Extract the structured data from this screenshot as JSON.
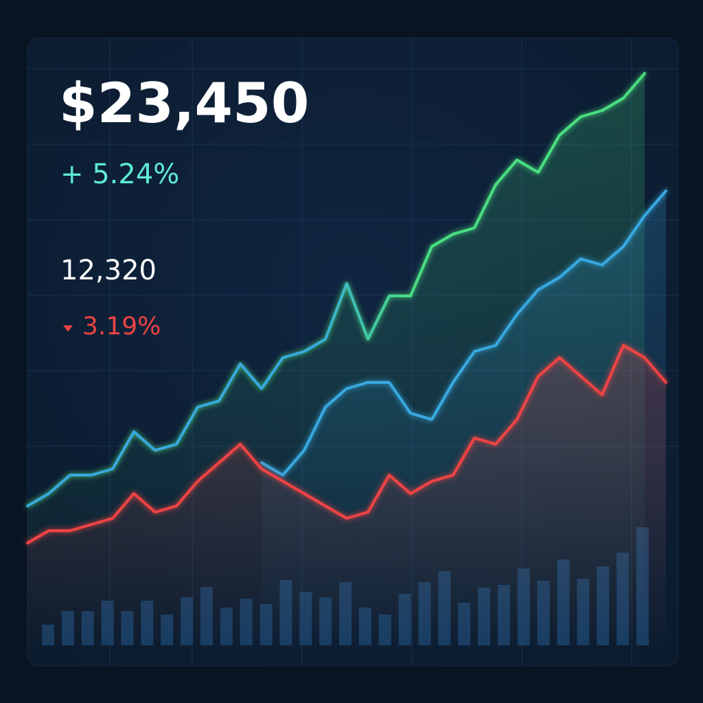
{
  "chart_data": {
    "type": "line",
    "price": "$23,450",
    "change": "+ 5.24%",
    "change_color": "#5eead4",
    "price_secondary": "12,320",
    "change_secondary": "3.19%",
    "change_secondary_color": "#ef4444",
    "categories": [
      null,
      null,
      null,
      null,
      null,
      null,
      null,
      null,
      null,
      null,
      null,
      null,
      null,
      null,
      null,
      null,
      null,
      null,
      null,
      null,
      null,
      null,
      null,
      null,
      null,
      null,
      null,
      null,
      null,
      null,
      null
    ],
    "ylim": [
      0,
      100
    ],
    "series": [
      {
        "color": "#4ade80",
        "start_color": "#38a9e0",
        "area": true,
        "values": [
          27,
          29,
          32,
          32,
          33,
          39,
          36,
          37,
          43,
          44,
          50,
          46,
          51,
          52,
          54,
          63,
          54,
          61,
          61,
          69,
          71,
          72,
          79,
          83,
          81,
          87,
          90,
          91,
          93,
          97,
          null
        ]
      },
      {
        "color": "#38a9e0",
        "area": true,
        "values": [
          null,
          null,
          null,
          null,
          null,
          null,
          null,
          null,
          null,
          null,
          null,
          34,
          32,
          36,
          43,
          46,
          47,
          47,
          42,
          41,
          47,
          52,
          53,
          58,
          62,
          64,
          67,
          66,
          69,
          74,
          78
        ]
      },
      {
        "color": "#ef4444",
        "area": true,
        "values": [
          21,
          23,
          23,
          24,
          25,
          29,
          26,
          27,
          31,
          34,
          37,
          33,
          31,
          29,
          27,
          25,
          26,
          32,
          29,
          31,
          32,
          38,
          37,
          41,
          48,
          51,
          48,
          45,
          53,
          51,
          47
        ]
      }
    ],
    "volume": {
      "color": "#1e4a78",
      "ylim": [
        0,
        200
      ],
      "values": [
        30,
        50,
        50,
        65,
        50,
        65,
        45,
        70,
        85,
        55,
        68,
        60,
        95,
        78,
        70,
        92,
        55,
        45,
        75,
        92,
        108,
        62,
        84,
        88,
        112,
        94,
        125,
        97,
        115,
        135,
        172
      ]
    }
  }
}
